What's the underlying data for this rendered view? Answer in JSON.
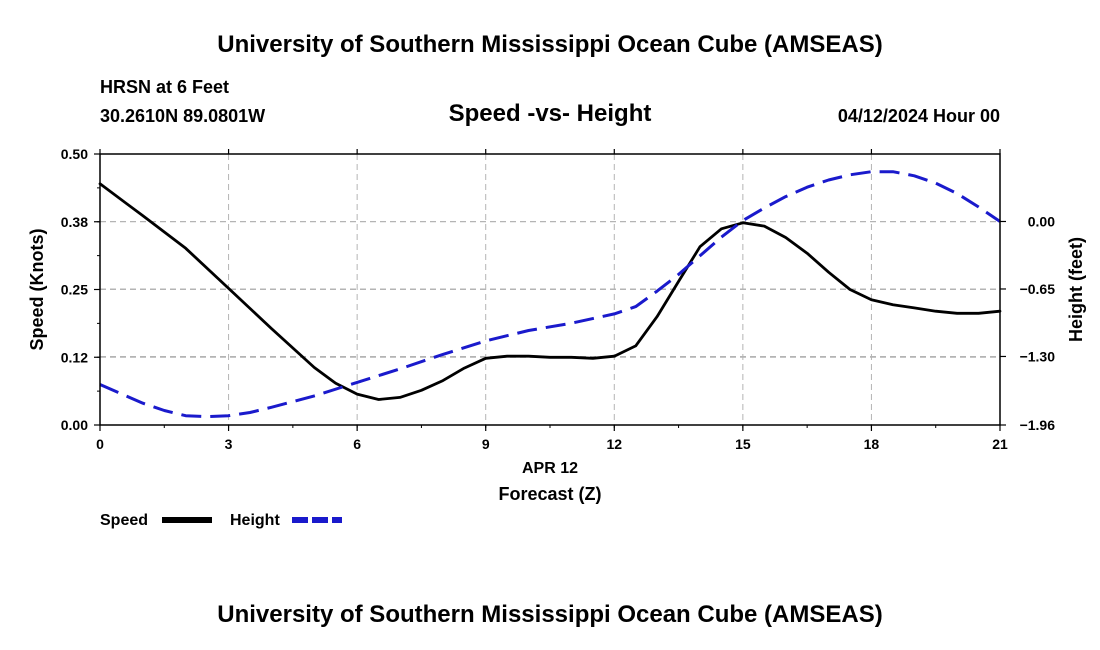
{
  "header": {
    "main_title": "University of Southern Mississippi Ocean Cube (AMSEAS)",
    "station": "HRSN at 6 Feet",
    "coords": "30.2610N  89.0801W",
    "date_hour": "04/12/2024 Hour 00",
    "footer_title": "University of Southern Mississippi Ocean Cube (AMSEAS)"
  },
  "colors": {
    "speed": "#000000",
    "height": "#1a1acc",
    "grid": "#b4b4b4"
  },
  "chart_data": {
    "type": "line",
    "title": "Speed -vs- Height",
    "xlabel_date": "APR 12",
    "xlabel": "Forecast (Z)",
    "ylabel": "Speed (Knots)",
    "y2label": "Height (feet)",
    "xlim": [
      0,
      21
    ],
    "ylim": [
      0,
      0.5
    ],
    "y2lim": [
      -1.96,
      0.65
    ],
    "x_ticks": [
      0,
      3,
      6,
      9,
      12,
      15,
      18,
      21
    ],
    "x_tick_labels": [
      "0",
      "3",
      "6",
      "9",
      "12",
      "15",
      "18",
      "21"
    ],
    "y_ticks": [
      0,
      0.125,
      0.25,
      0.375,
      0.5
    ],
    "y_tick_labels": [
      "0.00",
      "0.12",
      "0.25",
      "0.38",
      "0.50"
    ],
    "y2_ticks": [
      -1.96,
      -1.3,
      -0.65,
      0
    ],
    "y2_tick_labels": [
      "−1.96",
      "−1.30",
      "−0.65",
      "0.00"
    ],
    "legend": [
      "Speed",
      "Height"
    ],
    "series": [
      {
        "name": "Speed",
        "axis": "left",
        "style": "solid",
        "x": [
          0,
          1,
          2,
          3,
          4,
          5,
          5.5,
          6,
          6.5,
          7,
          7.5,
          8,
          8.5,
          9,
          9.5,
          10,
          10.5,
          11,
          11.5,
          12,
          12.5,
          13,
          13.5,
          14,
          14.5,
          15,
          15.5,
          16,
          16.5,
          17,
          17.5,
          18,
          18.5,
          19,
          19.5,
          20,
          20.5,
          21
        ],
        "values": [
          0.445,
          0.386,
          0.326,
          0.252,
          0.178,
          0.106,
          0.077,
          0.057,
          0.047,
          0.051,
          0.064,
          0.082,
          0.105,
          0.123,
          0.127,
          0.127,
          0.125,
          0.125,
          0.123,
          0.127,
          0.146,
          0.2,
          0.265,
          0.329,
          0.362,
          0.373,
          0.367,
          0.346,
          0.317,
          0.282,
          0.25,
          0.231,
          0.222,
          0.216,
          0.21,
          0.206,
          0.206,
          0.21
        ]
      },
      {
        "name": "Height",
        "axis": "right",
        "style": "dashed",
        "x": [
          0,
          0.5,
          1,
          1.5,
          2,
          2.5,
          3,
          3.5,
          4,
          5,
          6,
          7,
          8,
          9,
          10,
          11,
          12,
          12.5,
          13,
          13.5,
          14,
          14.5,
          15,
          15.5,
          16,
          16.5,
          17,
          17.5,
          18,
          18.5,
          19,
          19.5,
          20,
          20.5,
          21
        ],
        "values": [
          -1.57,
          -1.66,
          -1.75,
          -1.82,
          -1.87,
          -1.88,
          -1.87,
          -1.84,
          -1.79,
          -1.68,
          -1.55,
          -1.42,
          -1.28,
          -1.15,
          -1.05,
          -0.98,
          -0.89,
          -0.82,
          -0.67,
          -0.51,
          -0.33,
          -0.15,
          0.01,
          0.13,
          0.24,
          0.33,
          0.4,
          0.45,
          0.48,
          0.48,
          0.44,
          0.37,
          0.27,
          0.14,
          0.0
        ]
      }
    ]
  }
}
